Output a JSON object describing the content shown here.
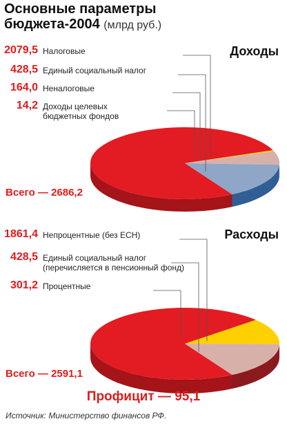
{
  "title": {
    "line1": "Основные параметры",
    "line2": "бюджета-2004",
    "unit": "(млрд руб.)"
  },
  "colors": {
    "red": "#e31b23",
    "red_dark": "#a41419",
    "blue_gray": "#8fa6c6",
    "blue_dark": "#2f5f94",
    "pink": "#d8b0aa",
    "pink_dark": "#9e6c66",
    "yellow": "#ffd000",
    "orange": "#e3a019",
    "maroon_side": "#8b1a1f"
  },
  "chart_data": [
    {
      "type": "pie",
      "title": "Доходы",
      "categories": [
        "Налоговые",
        "Единый социальный налог",
        "Неналоговые",
        "Доходы целевых бюджетных фондов"
      ],
      "values": [
        2079.5,
        428.5,
        164.0,
        14.2
      ],
      "value_labels": [
        "2079,5",
        "428,5",
        "164,0",
        "14,2"
      ],
      "label_lines": [
        [
          "Налоговые"
        ],
        [
          "Единый социальный налог"
        ],
        [
          "Неналоговые"
        ],
        [
          "Доходы целевых",
          "бюджетных фондов"
        ]
      ],
      "total_label": "Всего — 2686,2"
    },
    {
      "type": "pie",
      "title": "Расходы",
      "categories": [
        "Непроцентные (без ЕСН)",
        "Единый социальный налог (перечисляется в пенсионный фонд)",
        "Процентные"
      ],
      "values": [
        1861.4,
        428.5,
        301.2
      ],
      "value_labels": [
        "1861,4",
        "428,5",
        "301,2"
      ],
      "label_lines": [
        [
          "Непроцентные (без ЕСН)"
        ],
        [
          "Единый социальный налог",
          "(перечисляется в пенсионный фонд)"
        ],
        [
          "Процентные"
        ]
      ],
      "total_label": "Всего — 2591,1"
    }
  ],
  "surplus": "Профицит — 95,1",
  "source": "Источник: Министерство финансов РФ."
}
